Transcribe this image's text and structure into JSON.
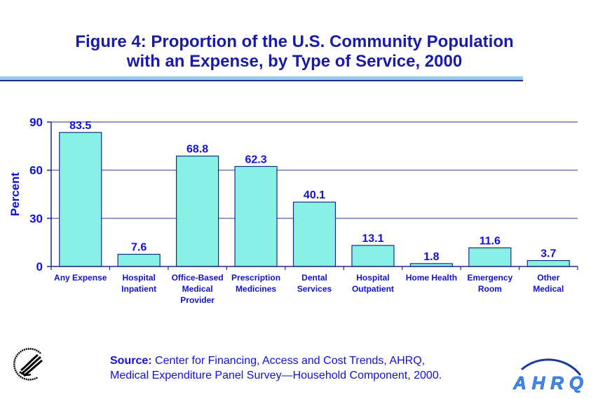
{
  "title": {
    "line1": "Figure 4: Proportion of the U.S. Community Population",
    "line2": "with an Expense, by Type of Service, 2000"
  },
  "source": {
    "label": "Source:",
    "line1": " Center for Financing, Access and Cost Trends, AHRQ,",
    "line2": "Medical Expenditure Panel Survey—Household Component, 2000."
  },
  "logos": {
    "left": "hhs-eagle-seal",
    "right": "AHRQ"
  },
  "colors": {
    "bar_fill": "#88f0e4",
    "bar_border": "#1a2a8a",
    "text": "#1010d8",
    "gridline": "#6a78b8"
  },
  "chart_data": {
    "type": "bar",
    "title": "Figure 4: Proportion of the U.S. Community Population with an Expense, by Type of Service, 2000",
    "xlabel": "",
    "ylabel": "Percent",
    "ylim": [
      0,
      90
    ],
    "yticks": [
      0,
      30,
      60,
      90
    ],
    "grid": true,
    "legend": "none",
    "categories": [
      [
        "Any Expense"
      ],
      [
        "Hospital",
        "Inpatient"
      ],
      [
        "Office-Based",
        "Medical",
        "Provider"
      ],
      [
        "Prescription",
        "Medicines"
      ],
      [
        "Dental",
        "Services"
      ],
      [
        "Hospital",
        "Outpatient"
      ],
      [
        "Home Health"
      ],
      [
        "Emergency",
        "Room"
      ],
      [
        "Other",
        "Medical"
      ]
    ],
    "values": [
      83.5,
      7.6,
      68.8,
      62.3,
      40.1,
      13.1,
      1.8,
      11.6,
      3.7
    ],
    "data_labels": [
      "83.5",
      "7.6",
      "68.8",
      "62.3",
      "40.1",
      "13.1",
      "1.8",
      "11.6",
      "3.7"
    ]
  }
}
